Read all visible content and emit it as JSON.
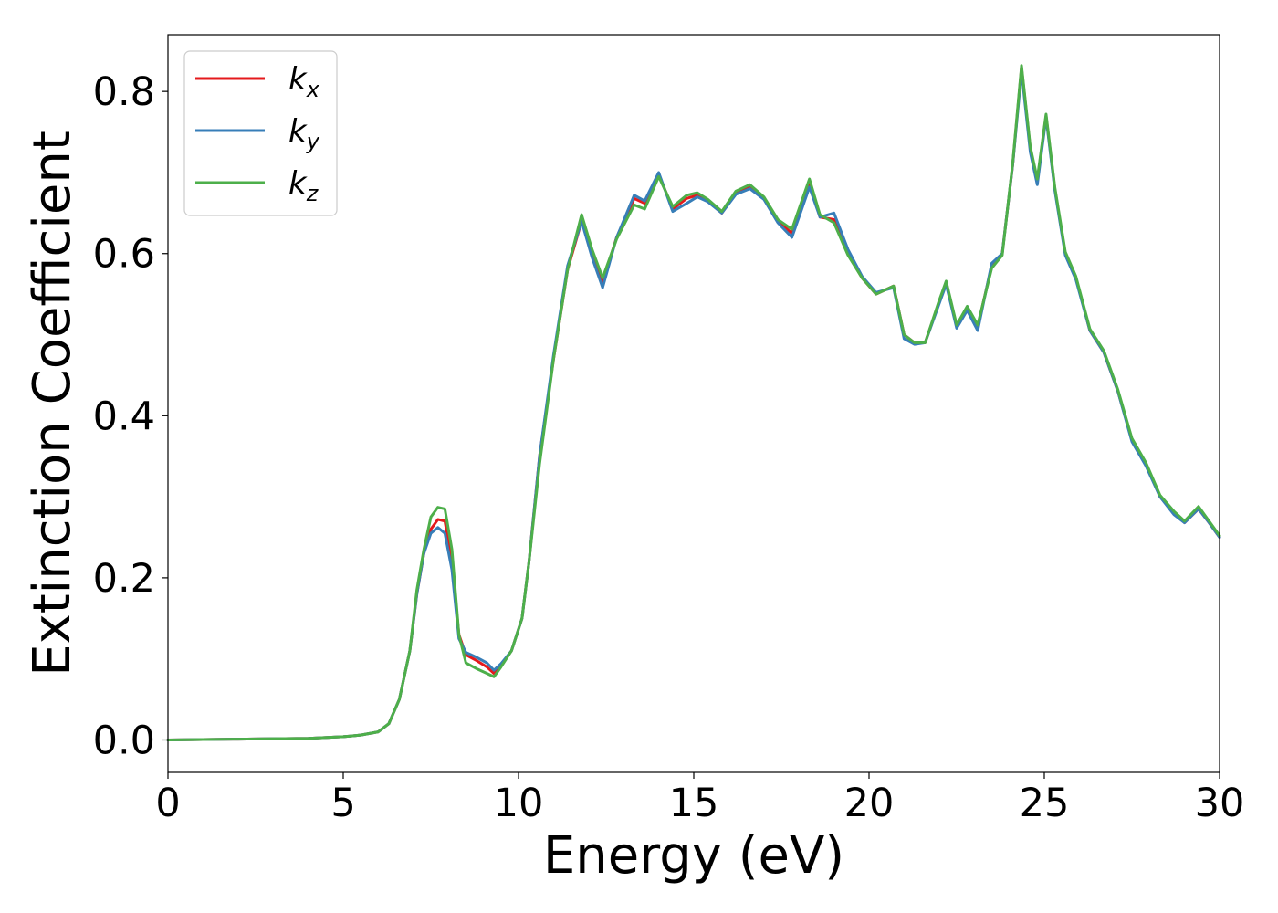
{
  "chart_data": {
    "type": "line",
    "title": "",
    "xlabel": "Energy (eV)",
    "ylabel": "Extinction Coefficient",
    "xlim": [
      0,
      30
    ],
    "ylim": [
      -0.04,
      0.87
    ],
    "xticks": [
      0,
      5,
      10,
      15,
      20,
      25,
      30
    ],
    "yticks": [
      0.0,
      0.2,
      0.4,
      0.6,
      0.8
    ],
    "xtick_labels": [
      "0",
      "5",
      "10",
      "15",
      "20",
      "25",
      "30"
    ],
    "ytick_labels": [
      "0.0",
      "0.2",
      "0.4",
      "0.6",
      "0.8"
    ],
    "grid": false,
    "legend_position": "top-left",
    "series": [
      {
        "name": "k_x",
        "legend_main": "k",
        "legend_sub": "x",
        "color": "#e41a1c",
        "x": [
          0,
          1,
          2,
          3,
          4,
          5,
          5.5,
          6,
          6.3,
          6.6,
          6.9,
          7.1,
          7.3,
          7.5,
          7.7,
          7.9,
          8.1,
          8.3,
          8.5,
          8.8,
          9.1,
          9.3,
          9.5,
          9.8,
          10.1,
          10.3,
          10.6,
          11.0,
          11.4,
          11.8,
          12.1,
          12.4,
          12.8,
          13.3,
          13.6,
          14.0,
          14.4,
          14.8,
          15.1,
          15.4,
          15.8,
          16.2,
          16.6,
          17.0,
          17.4,
          17.8,
          18.3,
          18.6,
          19.0,
          19.4,
          19.8,
          20.2,
          20.7,
          21.0,
          21.3,
          21.6,
          22.0,
          22.2,
          22.5,
          22.8,
          23.1,
          23.5,
          23.8,
          24.1,
          24.35,
          24.6,
          24.8,
          25.05,
          25.3,
          25.6,
          25.9,
          26.3,
          26.7,
          27.1,
          27.5,
          27.9,
          28.3,
          28.7,
          29.0,
          29.4,
          29.7,
          30.0
        ],
        "y": [
          0.0,
          0.0005,
          0.001,
          0.0015,
          0.002,
          0.004,
          0.006,
          0.01,
          0.02,
          0.05,
          0.11,
          0.18,
          0.23,
          0.26,
          0.272,
          0.27,
          0.22,
          0.13,
          0.105,
          0.098,
          0.09,
          0.082,
          0.092,
          0.11,
          0.15,
          0.22,
          0.35,
          0.47,
          0.58,
          0.64,
          0.6,
          0.565,
          0.62,
          0.668,
          0.662,
          0.698,
          0.655,
          0.668,
          0.672,
          0.665,
          0.65,
          0.675,
          0.682,
          0.668,
          0.64,
          0.625,
          0.688,
          0.645,
          0.642,
          0.6,
          0.57,
          0.55,
          0.56,
          0.5,
          0.49,
          0.49,
          0.54,
          0.565,
          0.51,
          0.532,
          0.51,
          0.585,
          0.6,
          0.71,
          0.83,
          0.73,
          0.69,
          0.77,
          0.68,
          0.6,
          0.57,
          0.505,
          0.478,
          0.43,
          0.37,
          0.34,
          0.3,
          0.28,
          0.268,
          0.285,
          0.268,
          0.25
        ]
      },
      {
        "name": "k_y",
        "legend_main": "k",
        "legend_sub": "y",
        "color": "#377eb8",
        "x": [
          0,
          1,
          2,
          3,
          4,
          5,
          5.5,
          6,
          6.3,
          6.6,
          6.9,
          7.1,
          7.3,
          7.5,
          7.7,
          7.9,
          8.1,
          8.3,
          8.5,
          8.8,
          9.1,
          9.3,
          9.5,
          9.8,
          10.1,
          10.3,
          10.6,
          11.0,
          11.4,
          11.8,
          12.1,
          12.4,
          12.8,
          13.3,
          13.6,
          14.0,
          14.4,
          14.8,
          15.1,
          15.4,
          15.8,
          16.2,
          16.6,
          17.0,
          17.4,
          17.8,
          18.3,
          18.6,
          19.0,
          19.4,
          19.8,
          20.2,
          20.7,
          21.0,
          21.3,
          21.6,
          22.0,
          22.2,
          22.5,
          22.8,
          23.1,
          23.5,
          23.8,
          24.1,
          24.35,
          24.6,
          24.8,
          25.05,
          25.3,
          25.6,
          25.9,
          26.3,
          26.7,
          27.1,
          27.5,
          27.9,
          28.3,
          28.7,
          29.0,
          29.4,
          29.7,
          30.0
        ],
        "y": [
          0.0,
          0.0005,
          0.001,
          0.0015,
          0.002,
          0.004,
          0.006,
          0.01,
          0.02,
          0.05,
          0.11,
          0.18,
          0.23,
          0.255,
          0.262,
          0.255,
          0.21,
          0.125,
          0.108,
          0.102,
          0.095,
          0.086,
          0.094,
          0.11,
          0.15,
          0.22,
          0.35,
          0.475,
          0.585,
          0.64,
          0.595,
          0.558,
          0.62,
          0.672,
          0.665,
          0.7,
          0.652,
          0.662,
          0.67,
          0.664,
          0.65,
          0.673,
          0.68,
          0.667,
          0.638,
          0.62,
          0.682,
          0.645,
          0.65,
          0.605,
          0.572,
          0.552,
          0.558,
          0.495,
          0.488,
          0.49,
          0.538,
          0.562,
          0.508,
          0.53,
          0.505,
          0.588,
          0.6,
          0.71,
          0.825,
          0.725,
          0.685,
          0.768,
          0.678,
          0.598,
          0.568,
          0.505,
          0.478,
          0.43,
          0.368,
          0.338,
          0.3,
          0.278,
          0.268,
          0.285,
          0.268,
          0.25
        ]
      },
      {
        "name": "k_z",
        "legend_main": "k",
        "legend_sub": "z",
        "color": "#4daf4a",
        "x": [
          0,
          1,
          2,
          3,
          4,
          5,
          5.5,
          6,
          6.3,
          6.6,
          6.9,
          7.1,
          7.3,
          7.5,
          7.7,
          7.9,
          8.1,
          8.3,
          8.5,
          8.8,
          9.1,
          9.3,
          9.5,
          9.8,
          10.1,
          10.3,
          10.6,
          11.0,
          11.4,
          11.8,
          12.1,
          12.4,
          12.8,
          13.3,
          13.6,
          14.0,
          14.4,
          14.8,
          15.1,
          15.4,
          15.8,
          16.2,
          16.6,
          17.0,
          17.4,
          17.8,
          18.3,
          18.6,
          19.0,
          19.4,
          19.8,
          20.2,
          20.7,
          21.0,
          21.3,
          21.6,
          22.0,
          22.2,
          22.5,
          22.8,
          23.1,
          23.5,
          23.8,
          24.1,
          24.35,
          24.6,
          24.8,
          25.05,
          25.3,
          25.6,
          25.9,
          26.3,
          26.7,
          27.1,
          27.5,
          27.9,
          28.3,
          28.7,
          29.0,
          29.4,
          29.7,
          30.0
        ],
        "y": [
          0.0,
          0.0005,
          0.001,
          0.0015,
          0.002,
          0.004,
          0.006,
          0.01,
          0.02,
          0.05,
          0.11,
          0.185,
          0.235,
          0.275,
          0.287,
          0.285,
          0.235,
          0.13,
          0.095,
          0.088,
          0.082,
          0.078,
          0.09,
          0.11,
          0.15,
          0.22,
          0.34,
          0.47,
          0.58,
          0.648,
          0.605,
          0.57,
          0.618,
          0.66,
          0.655,
          0.695,
          0.658,
          0.672,
          0.675,
          0.667,
          0.652,
          0.677,
          0.685,
          0.67,
          0.642,
          0.63,
          0.692,
          0.648,
          0.638,
          0.598,
          0.57,
          0.55,
          0.56,
          0.5,
          0.49,
          0.49,
          0.542,
          0.566,
          0.512,
          0.535,
          0.512,
          0.582,
          0.598,
          0.712,
          0.832,
          0.732,
          0.692,
          0.772,
          0.682,
          0.602,
          0.572,
          0.507,
          0.48,
          0.432,
          0.372,
          0.342,
          0.302,
          0.282,
          0.27,
          0.288,
          0.27,
          0.252
        ]
      }
    ]
  }
}
